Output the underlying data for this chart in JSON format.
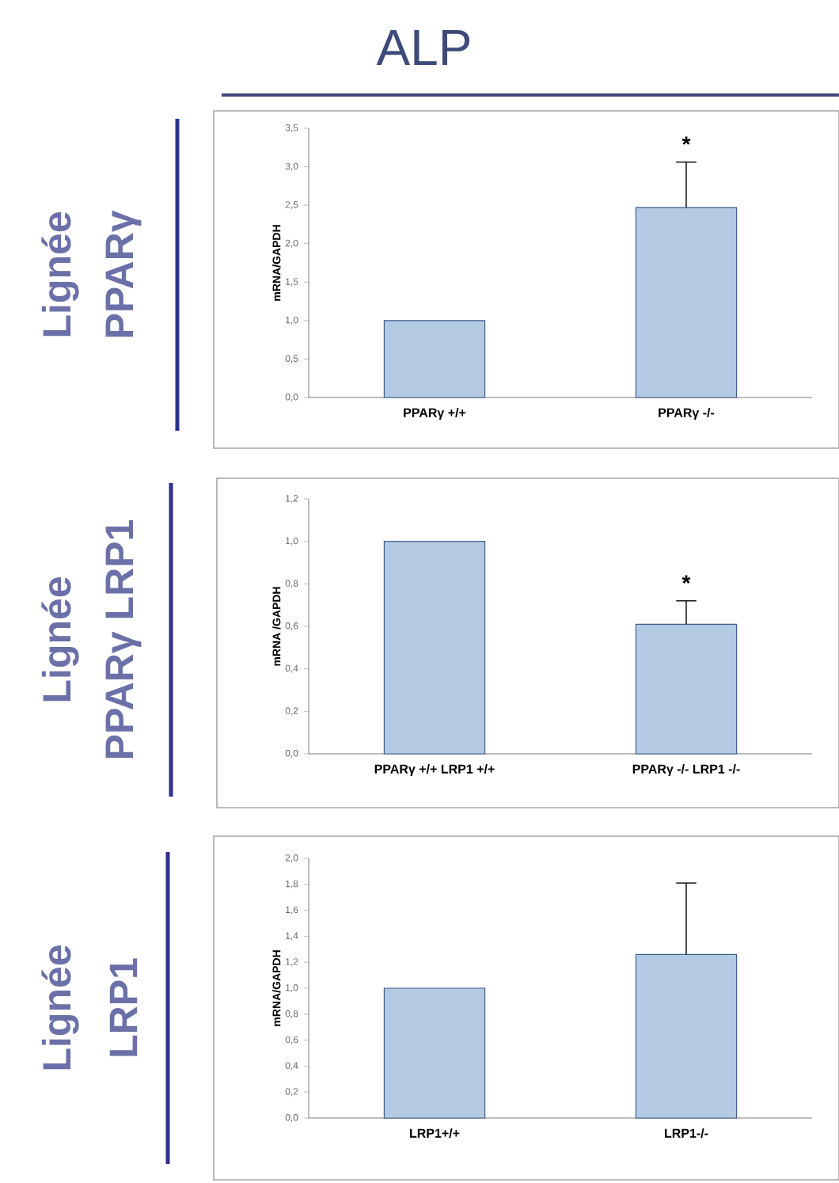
{
  "chart_data": [
    {
      "type": "bar",
      "title": "ALP",
      "ylabel": "mRNA/GAPDH",
      "categories": [
        "PPARγ +/+",
        "PPARγ -/-"
      ],
      "values": [
        1.0,
        2.47
      ],
      "errors": [
        null,
        [
          2.47,
          3.06
        ]
      ],
      "color": "#b4c9e2",
      "ylim": [
        0,
        3.5
      ],
      "yticks": [
        {
          "value": 0,
          "label": "0,0"
        },
        {
          "value": 0.5,
          "label": "0,5"
        },
        {
          "value": 1,
          "label": "1,0"
        },
        {
          "value": 1.5,
          "label": "1,5"
        },
        {
          "value": 2,
          "label": "2,0"
        },
        {
          "value": 2.5,
          "label": "2,5"
        },
        {
          "value": 3,
          "label": "3,0"
        },
        {
          "value": 3.5,
          "label": "3,5"
        }
      ],
      "annotations": [
        "Lignée",
        "PPARγ",
        "*"
      ]
    },
    {
      "type": "bar",
      "ylabel": "mRNA /GAPDH",
      "categories": [
        "PPARγ +/+ LRP1 +/+",
        "PPARγ -/- LRP1 -/-"
      ],
      "values": [
        1.0,
        0.61
      ],
      "errors": [
        null,
        [
          0.61,
          0.72
        ]
      ],
      "color": "#b4c9e2",
      "ylim": [
        0,
        1.2
      ],
      "yticks": [
        {
          "value": 0,
          "label": "0,0"
        },
        {
          "value": 0.2,
          "label": "0,2"
        },
        {
          "value": 0.4,
          "label": "0,4"
        },
        {
          "value": 0.6,
          "label": "0,6"
        },
        {
          "value": 0.8,
          "label": "0,8"
        },
        {
          "value": 1,
          "label": "1,0"
        },
        {
          "value": 1.2,
          "label": "1,2"
        }
      ],
      "annotations": [
        "Lignée",
        "PPARγ LRP1",
        "*"
      ]
    },
    {
      "type": "bar",
      "ylabel": "mRNA/GAPDH",
      "categories": [
        "LRP1+/+",
        "LRP1-/-"
      ],
      "values": [
        1.0,
        1.26
      ],
      "errors": [
        null,
        [
          1.26,
          1.81
        ]
      ],
      "color": "#b4c9e2",
      "ylim": [
        0,
        2.0
      ],
      "yticks": [
        {
          "value": 0,
          "label": "0,0"
        },
        {
          "value": 0.2,
          "label": "0,2"
        },
        {
          "value": 0.4,
          "label": "0,4"
        },
        {
          "value": 0.6,
          "label": "0,6"
        },
        {
          "value": 0.8,
          "label": "0,8"
        },
        {
          "value": 1,
          "label": "1,0"
        },
        {
          "value": 1.2,
          "label": "1,2"
        },
        {
          "value": 1.4,
          "label": "1,4"
        },
        {
          "value": 1.6,
          "label": "1,6"
        },
        {
          "value": 1.8,
          "label": "1,8"
        },
        {
          "value": 2,
          "label": "2,0"
        }
      ],
      "annotations": [
        "Lignée",
        "LRP1"
      ]
    }
  ]
}
